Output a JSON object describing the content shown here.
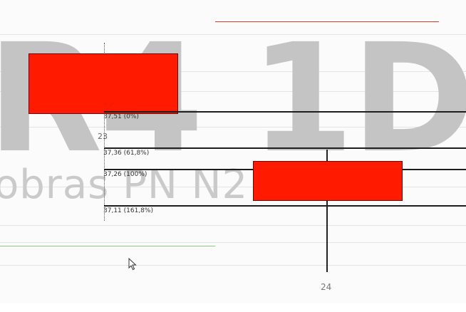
{
  "watermark": {
    "symbol_timeframe": "R4 1D",
    "instrument": "obras PN N2"
  },
  "fibonacci": [
    {
      "label": "37,51 (0%)"
    },
    {
      "label": "37,36 (61,8%)"
    },
    {
      "label": "37,26 (100%)"
    },
    {
      "label": "37,11 (161,8%)"
    }
  ],
  "x_axis": {
    "tick_label": "24",
    "partial_label": "23"
  },
  "colors": {
    "bearish_candle": "#ff1a00",
    "upper_line": "#e33a2a",
    "lower_line": "#8ecb7e",
    "watermark": "#c4c4c4"
  },
  "icons": {
    "cursor": "mouse-pointer-icon"
  }
}
